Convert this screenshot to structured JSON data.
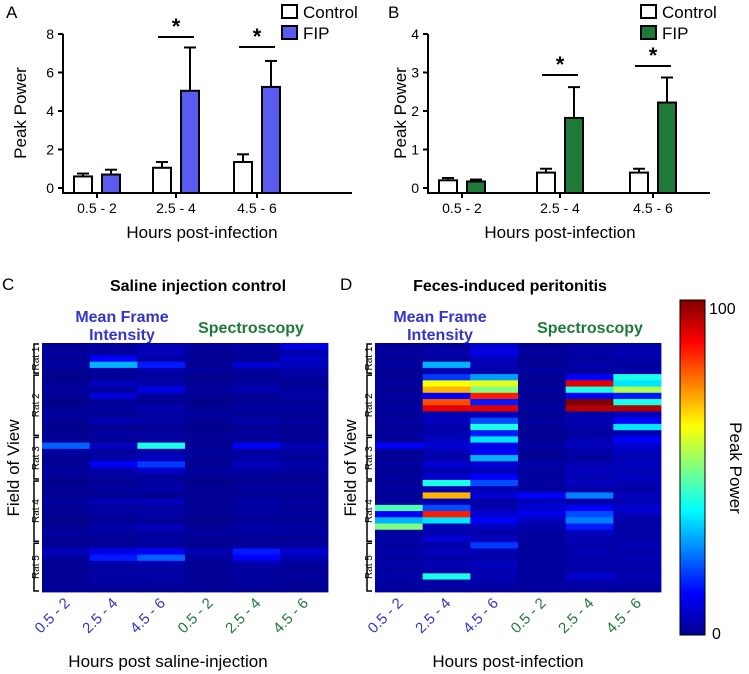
{
  "chart_data": [
    {
      "type": "bar",
      "panel": "A",
      "title": "",
      "xlabel": "Hours post-infection",
      "ylabel": "Peak Power",
      "categories": [
        "0.5 - 2",
        "2.5 - 4",
        "4.5 - 6"
      ],
      "ylim": [
        0,
        8
      ],
      "yticks": [
        "0",
        "2",
        "4",
        "6",
        "8"
      ],
      "series": [
        {
          "name": "Control",
          "color": "#ffffff",
          "values": [
            0.6,
            1.05,
            1.35
          ],
          "errors": [
            0.15,
            0.3,
            0.4
          ]
        },
        {
          "name": "FIP",
          "color": "#5a5cf0",
          "values": [
            0.7,
            5.05,
            5.25
          ],
          "errors": [
            0.25,
            2.25,
            1.35
          ]
        }
      ],
      "significance": [
        {
          "category": 1,
          "label": "*"
        },
        {
          "category": 2,
          "label": "*"
        }
      ],
      "legend": "top-right"
    },
    {
      "type": "bar",
      "panel": "B",
      "title": "",
      "xlabel": "Hours post-infection",
      "ylabel": "Peak Power",
      "categories": [
        "0.5 - 2",
        "2.5 - 4",
        "4.5 - 6"
      ],
      "ylim": [
        0,
        4
      ],
      "yticks": [
        "0",
        "1",
        "2",
        "3",
        "4"
      ],
      "series": [
        {
          "name": "Control",
          "color": "#ffffff",
          "values": [
            0.2,
            0.4,
            0.4
          ],
          "errors": [
            0.06,
            0.1,
            0.1
          ]
        },
        {
          "name": "FIP",
          "color": "#1f7a3a",
          "values": [
            0.17,
            1.82,
            2.22
          ],
          "errors": [
            0.05,
            0.8,
            0.65
          ]
        }
      ],
      "significance": [
        {
          "category": 1,
          "label": "*"
        },
        {
          "category": 2,
          "label": "*"
        }
      ],
      "legend": "top-right"
    },
    {
      "type": "heatmap",
      "panel": "C",
      "title": "Saline injection control",
      "xlabel": "Hours post saline-injection",
      "ylabel": "Field of View",
      "group_labels": [
        {
          "text": "Mean Frame Intensity",
          "color": "#3535c8"
        },
        {
          "text": "Spectroscopy",
          "color": "#1f7a3a"
        }
      ],
      "columns": [
        {
          "label": "0.5 - 2",
          "color": "#3535c8"
        },
        {
          "label": "2.5 - 4",
          "color": "#3535c8"
        },
        {
          "label": "4.5 - 6",
          "color": "#3535c8"
        },
        {
          "label": "0.5 - 2",
          "color": "#1f7a3a"
        },
        {
          "label": "2.5 - 4",
          "color": "#1f7a3a"
        },
        {
          "label": "4.5 - 6",
          "color": "#1f7a3a"
        }
      ],
      "row_groups": [
        {
          "label": "Rat 1",
          "rows": 5
        },
        {
          "label": "Rat 2",
          "rows": 10
        },
        {
          "label": "Rat 3",
          "rows": 7
        },
        {
          "label": "Rat 4",
          "rows": 10
        },
        {
          "label": "Rat 5",
          "rows": 8
        }
      ],
      "values": [
        [
          2,
          3,
          5,
          3,
          3,
          10
        ],
        [
          3,
          3,
          6,
          2,
          3,
          5
        ],
        [
          2,
          12,
          4,
          2,
          2,
          7
        ],
        [
          3,
          30,
          15,
          2,
          8,
          6
        ],
        [
          2,
          3,
          4,
          3,
          3,
          4
        ],
        [
          1,
          2,
          3,
          1,
          2,
          3
        ],
        [
          2,
          6,
          4,
          2,
          3,
          2
        ],
        [
          3,
          3,
          10,
          3,
          5,
          3
        ],
        [
          2,
          9,
          3,
          2,
          2,
          4
        ],
        [
          1,
          2,
          2,
          1,
          2,
          2
        ],
        [
          2,
          3,
          5,
          2,
          3,
          3
        ],
        [
          3,
          2,
          3,
          3,
          2,
          2
        ],
        [
          2,
          5,
          4,
          2,
          4,
          3
        ],
        [
          1,
          2,
          2,
          1,
          2,
          2
        ],
        [
          2,
          3,
          3,
          2,
          3,
          2
        ],
        [
          2,
          2,
          3,
          2,
          2,
          2
        ],
        [
          22,
          6,
          40,
          2,
          12,
          5
        ],
        [
          3,
          3,
          4,
          3,
          3,
          3
        ],
        [
          2,
          4,
          6,
          2,
          4,
          2
        ],
        [
          2,
          12,
          18,
          2,
          6,
          4
        ],
        [
          3,
          4,
          7,
          3,
          4,
          3
        ],
        [
          2,
          3,
          3,
          2,
          2,
          2
        ],
        [
          1,
          2,
          3,
          1,
          2,
          2
        ],
        [
          2,
          3,
          4,
          2,
          3,
          3
        ],
        [
          2,
          2,
          2,
          2,
          2,
          2
        ],
        [
          3,
          5,
          6,
          2,
          4,
          3
        ],
        [
          2,
          3,
          3,
          2,
          3,
          2
        ],
        [
          2,
          3,
          4,
          2,
          3,
          3
        ],
        [
          1,
          2,
          2,
          1,
          2,
          2
        ],
        [
          2,
          4,
          6,
          2,
          4,
          3
        ],
        [
          3,
          3,
          3,
          3,
          3,
          3
        ],
        [
          2,
          2,
          3,
          2,
          2,
          2
        ],
        [
          2,
          3,
          3,
          2,
          3,
          3
        ],
        [
          6,
          10,
          12,
          5,
          15,
          8
        ],
        [
          3,
          15,
          22,
          3,
          12,
          5
        ],
        [
          2,
          4,
          5,
          2,
          4,
          3
        ],
        [
          2,
          3,
          3,
          2,
          3,
          2
        ],
        [
          2,
          4,
          4,
          2,
          3,
          3
        ],
        [
          2,
          3,
          3,
          2,
          3,
          2
        ],
        [
          2,
          2,
          2,
          2,
          2,
          2
        ]
      ],
      "vmin": 0,
      "vmax": 100
    },
    {
      "type": "heatmap",
      "panel": "D",
      "title": "Feces-induced peritonitis",
      "xlabel": "Hours post-infection",
      "ylabel": "Field of View",
      "group_labels": [
        {
          "text": "Mean Frame Intensity",
          "color": "#3535c8"
        },
        {
          "text": "Spectroscopy",
          "color": "#1f7a3a"
        }
      ],
      "columns": [
        {
          "label": "0.5 - 2",
          "color": "#3535c8"
        },
        {
          "label": "2.5 - 4",
          "color": "#3535c8"
        },
        {
          "label": "4.5 - 6",
          "color": "#3535c8"
        },
        {
          "label": "0.5 - 2",
          "color": "#1f7a3a"
        },
        {
          "label": "2.5 - 4",
          "color": "#1f7a3a"
        },
        {
          "label": "4.5 - 6",
          "color": "#1f7a3a"
        }
      ],
      "row_groups": [
        {
          "label": "Rat 1",
          "rows": 5
        },
        {
          "label": "Rat 2",
          "rows": 10
        },
        {
          "label": "Rat 3",
          "rows": 7
        },
        {
          "label": "Rat 4",
          "rows": 10
        },
        {
          "label": "Rat 5",
          "rows": 8
        }
      ],
      "values": [
        [
          2,
          3,
          8,
          2,
          3,
          4
        ],
        [
          3,
          4,
          10,
          3,
          4,
          5
        ],
        [
          2,
          3,
          6,
          2,
          3,
          4
        ],
        [
          3,
          30,
          5,
          2,
          4,
          3
        ],
        [
          2,
          5,
          4,
          3,
          3,
          4
        ],
        [
          2,
          18,
          28,
          2,
          12,
          40
        ],
        [
          3,
          62,
          60,
          2,
          90,
          35
        ],
        [
          2,
          70,
          50,
          3,
          40,
          55
        ],
        [
          3,
          12,
          85,
          2,
          12,
          15
        ],
        [
          2,
          80,
          15,
          2,
          100,
          40
        ],
        [
          3,
          90,
          90,
          3,
          95,
          95
        ],
        [
          2,
          5,
          6,
          2,
          4,
          6
        ],
        [
          3,
          6,
          20,
          3,
          5,
          12
        ],
        [
          2,
          4,
          40,
          2,
          4,
          35
        ],
        [
          3,
          5,
          15,
          2,
          3,
          5
        ],
        [
          2,
          6,
          35,
          2,
          5,
          12
        ],
        [
          12,
          8,
          10,
          3,
          6,
          8
        ],
        [
          2,
          5,
          12,
          2,
          4,
          6
        ],
        [
          2,
          4,
          30,
          2,
          3,
          5
        ],
        [
          3,
          8,
          8,
          4,
          5,
          6
        ],
        [
          2,
          5,
          6,
          3,
          6,
          5
        ],
        [
          3,
          8,
          12,
          3,
          5,
          6
        ],
        [
          2,
          40,
          20,
          3,
          6,
          5
        ],
        [
          3,
          5,
          5,
          3,
          4,
          4
        ],
        [
          2,
          70,
          8,
          12,
          25,
          6
        ],
        [
          3,
          5,
          4,
          6,
          4,
          5
        ],
        [
          45,
          20,
          5,
          8,
          12,
          8
        ],
        [
          12,
          85,
          8,
          10,
          20,
          6
        ],
        [
          30,
          35,
          12,
          6,
          25,
          4
        ],
        [
          50,
          5,
          6,
          4,
          15,
          4
        ],
        [
          3,
          5,
          4,
          3,
          6,
          4
        ],
        [
          4,
          8,
          6,
          3,
          5,
          4
        ],
        [
          3,
          4,
          18,
          3,
          4,
          5
        ],
        [
          4,
          6,
          5,
          3,
          5,
          4
        ],
        [
          3,
          4,
          4,
          3,
          4,
          5
        ],
        [
          4,
          5,
          6,
          3,
          4,
          4
        ],
        [
          3,
          4,
          5,
          3,
          4,
          4
        ],
        [
          4,
          40,
          5,
          3,
          8,
          5
        ],
        [
          3,
          4,
          4,
          3,
          4,
          4
        ],
        [
          3,
          3,
          3,
          3,
          3,
          3
        ]
      ],
      "vmin": 0,
      "vmax": 100
    }
  ],
  "panels": {
    "a": {
      "letter": "A"
    },
    "b": {
      "letter": "B"
    },
    "c": {
      "letter": "C"
    },
    "d": {
      "letter": "D"
    }
  },
  "colorbar": {
    "label": "Peak Power",
    "max_label": "100",
    "min_label": "0",
    "colormap": "jet"
  }
}
